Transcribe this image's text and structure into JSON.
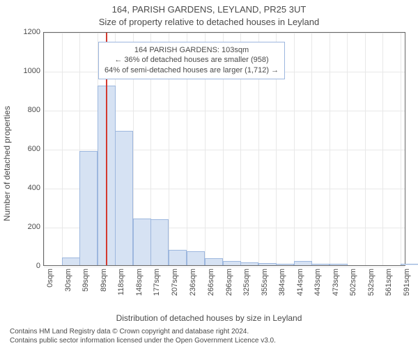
{
  "chart": {
    "type": "histogram",
    "title": "164, PARISH GARDENS, LEYLAND, PR25 3UT",
    "subtitle": "Size of property relative to detached houses in Leyland",
    "ylabel": "Number of detached properties",
    "xlabel": "Distribution of detached houses by size in Leyland",
    "background_color": "#ffffff",
    "axis_color": "#666666",
    "grid_color": "#e8e8e8",
    "text_color": "#4a4a4a",
    "xlim": [
      0,
      600
    ],
    "ylim": [
      0,
      1200
    ],
    "yticks": [
      0,
      200,
      400,
      600,
      800,
      1000,
      1200
    ],
    "xticks": [
      {
        "v": 0,
        "label": "0sqm"
      },
      {
        "v": 30,
        "label": "30sqm"
      },
      {
        "v": 59,
        "label": "59sqm"
      },
      {
        "v": 89,
        "label": "89sqm"
      },
      {
        "v": 118,
        "label": "118sqm"
      },
      {
        "v": 148,
        "label": "148sqm"
      },
      {
        "v": 177,
        "label": "177sqm"
      },
      {
        "v": 207,
        "label": "207sqm"
      },
      {
        "v": 236,
        "label": "236sqm"
      },
      {
        "v": 266,
        "label": "266sqm"
      },
      {
        "v": 296,
        "label": "296sqm"
      },
      {
        "v": 325,
        "label": "325sqm"
      },
      {
        "v": 355,
        "label": "355sqm"
      },
      {
        "v": 384,
        "label": "384sqm"
      },
      {
        "v": 414,
        "label": "414sqm"
      },
      {
        "v": 443,
        "label": "443sqm"
      },
      {
        "v": 473,
        "label": "473sqm"
      },
      {
        "v": 502,
        "label": "502sqm"
      },
      {
        "v": 532,
        "label": "532sqm"
      },
      {
        "v": 561,
        "label": "561sqm"
      },
      {
        "v": 591,
        "label": "591sqm"
      }
    ],
    "bar_width_units": 30,
    "bar_fill": "#d6e2f3",
    "bar_stroke": "#9db7de",
    "bars": [
      {
        "x": 30,
        "y": 40
      },
      {
        "x": 59,
        "y": 585
      },
      {
        "x": 89,
        "y": 920
      },
      {
        "x": 118,
        "y": 690
      },
      {
        "x": 148,
        "y": 240
      },
      {
        "x": 177,
        "y": 235
      },
      {
        "x": 207,
        "y": 80
      },
      {
        "x": 236,
        "y": 70
      },
      {
        "x": 266,
        "y": 35
      },
      {
        "x": 296,
        "y": 20
      },
      {
        "x": 325,
        "y": 15
      },
      {
        "x": 355,
        "y": 12
      },
      {
        "x": 384,
        "y": 8
      },
      {
        "x": 414,
        "y": 20
      },
      {
        "x": 443,
        "y": 6
      },
      {
        "x": 473,
        "y": 6
      },
      {
        "x": 591,
        "y": 6
      }
    ],
    "marker": {
      "x": 103,
      "color": "#d33a2f"
    },
    "info_box": {
      "border_color": "#9db7de",
      "line1": "164 PARISH GARDENS: 103sqm",
      "line2": "← 36% of detached houses are smaller (958)",
      "line3": "64% of semi-detached houses are larger (1,712) →",
      "left_units": 90,
      "top_units": 1155
    },
    "attribution": {
      "line1": "Contains HM Land Registry data © Crown copyright and database right 2024.",
      "line2": "Contains public sector information licensed under the Open Government Licence v3.0."
    }
  }
}
